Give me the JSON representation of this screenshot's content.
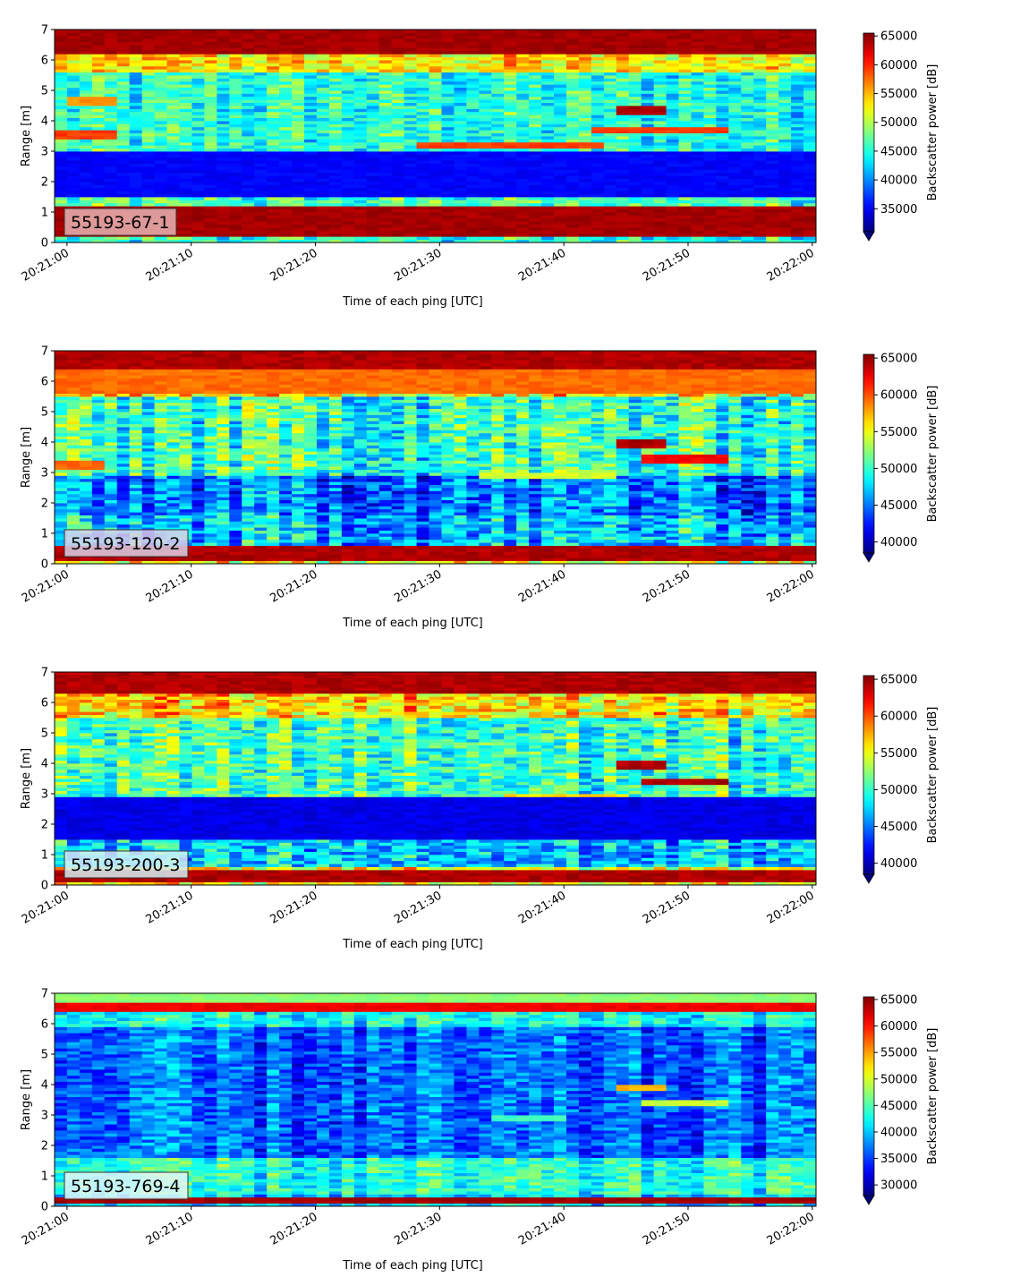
{
  "figure": {
    "colormap": "jet",
    "colormap_under_color": "#00007f"
  },
  "chart_data": [
    {
      "type": "heatmap",
      "panel_label": "55193-67-1",
      "label_box_color": "#e8b4b4",
      "xlabel": "Time of each ping [UTC]",
      "ylabel": "Range [m]",
      "x_ticks": [
        "20:21:00",
        "20:21:10",
        "20:21:20",
        "20:21:30",
        "20:21:40",
        "20:21:50",
        "20:22:00"
      ],
      "x_range_seconds": [
        -1,
        60.3
      ],
      "y_ticks": [
        0,
        1,
        2,
        3,
        4,
        5,
        6,
        7
      ],
      "ylim": [
        0,
        7
      ],
      "colorbar": {
        "label": "Backscatter power [dB]",
        "ticks": [
          35000,
          40000,
          45000,
          50000,
          55000,
          60000,
          65000
        ],
        "range": [
          31000,
          65500
        ],
        "extend": "min"
      },
      "features": [
        {
          "range": [
            0.2,
            1.2
          ],
          "value": 65000,
          "note": "strong near-field band"
        },
        {
          "range": [
            6.2,
            7.0
          ],
          "value": 65000,
          "note": "strong far band"
        },
        {
          "range": [
            1.5,
            3.0
          ],
          "value": 36000,
          "note": "low-backscatter band"
        },
        {
          "range": [
            3.1,
            3.3
          ],
          "time": [
            28,
            43
          ],
          "value": 60000
        },
        {
          "range": [
            3.6,
            3.8
          ],
          "time": [
            42,
            53
          ],
          "value": 60000
        },
        {
          "range": [
            4.2,
            4.5
          ],
          "time": [
            44,
            48
          ],
          "value": 65000
        },
        {
          "range": [
            3.4,
            3.65
          ],
          "time": [
            -1,
            4
          ],
          "value": 60000
        },
        {
          "range": [
            4.5,
            4.75
          ],
          "time": [
            0,
            4
          ],
          "value": 57000
        }
      ]
    },
    {
      "type": "heatmap",
      "panel_label": "55193-120-2",
      "label_box_color": "#dcd0e8",
      "xlabel": "Time of each ping [UTC]",
      "ylabel": "Range [m]",
      "x_ticks": [
        "20:21:00",
        "20:21:10",
        "20:21:20",
        "20:21:30",
        "20:21:40",
        "20:21:50",
        "20:22:00"
      ],
      "x_range_seconds": [
        -1,
        60.3
      ],
      "y_ticks": [
        0,
        1,
        2,
        3,
        4,
        5,
        6,
        7
      ],
      "ylim": [
        0,
        7
      ],
      "colorbar": {
        "label": "Backscatter power [dB]",
        "ticks": [
          40000,
          45000,
          50000,
          55000,
          60000,
          65000
        ],
        "range": [
          38500,
          65500
        ],
        "extend": "min"
      },
      "features": [
        {
          "range": [
            0.1,
            0.55
          ],
          "value": 65000
        },
        {
          "range": [
            6.4,
            7.0
          ],
          "value": 65000
        },
        {
          "range": [
            5.6,
            6.4
          ],
          "value": 60000
        },
        {
          "range": [
            3.8,
            4.05
          ],
          "time": [
            44,
            48
          ],
          "value": 65000
        },
        {
          "range": [
            3.35,
            3.55
          ],
          "time": [
            46,
            53
          ],
          "value": 63000
        },
        {
          "range": [
            2.85,
            3.0
          ],
          "time": [
            33,
            44
          ],
          "value": 55000
        },
        {
          "range": [
            3.15,
            3.35
          ],
          "time": [
            -1,
            3
          ],
          "value": 60000
        }
      ]
    },
    {
      "type": "heatmap",
      "panel_label": "55193-200-3",
      "label_box_color": "#d4f0f4",
      "xlabel": "Time of each ping [UTC]",
      "ylabel": "Range [m]",
      "x_ticks": [
        "20:21:00",
        "20:21:10",
        "20:21:20",
        "20:21:30",
        "20:21:40",
        "20:21:50",
        "20:22:00"
      ],
      "x_range_seconds": [
        -1,
        60.3
      ],
      "y_ticks": [
        0,
        1,
        2,
        3,
        4,
        5,
        6,
        7
      ],
      "ylim": [
        0,
        7
      ],
      "colorbar": {
        "label": "Backscatter power [dB]",
        "ticks": [
          40000,
          45000,
          50000,
          55000,
          60000,
          65000
        ],
        "range": [
          38500,
          65500
        ],
        "extend": "min"
      },
      "features": [
        {
          "range": [
            0.15,
            0.45
          ],
          "value": 65000
        },
        {
          "range": [
            6.3,
            7.0
          ],
          "value": 65000
        },
        {
          "range": [
            3.85,
            4.05
          ],
          "time": [
            44,
            48
          ],
          "value": 65000
        },
        {
          "range": [
            3.3,
            3.5
          ],
          "time": [
            46,
            53
          ],
          "value": 65000
        },
        {
          "range": [
            2.85,
            3.0
          ],
          "time": [
            35,
            45
          ],
          "value": 57000
        },
        {
          "range": [
            1.5,
            2.9
          ],
          "value": 42000
        }
      ]
    },
    {
      "type": "heatmap",
      "panel_label": "55193-769-4",
      "label_box_color": "#e0f4f8",
      "xlabel": "Time of each ping [UTC]",
      "ylabel": "Range [m]",
      "x_ticks": [
        "20:21:00",
        "20:21:10",
        "20:21:20",
        "20:21:30",
        "20:21:40",
        "20:21:50",
        "20:22:00"
      ],
      "x_range_seconds": [
        -1,
        60.3
      ],
      "y_ticks": [
        0,
        1,
        2,
        3,
        4,
        5,
        6,
        7
      ],
      "ylim": [
        0,
        7
      ],
      "colorbar": {
        "label": "Backscatter power [dB]",
        "ticks": [
          30000,
          35000,
          40000,
          45000,
          50000,
          55000,
          60000,
          65000
        ],
        "range": [
          28000,
          65500
        ],
        "extend": "min"
      },
      "features": [
        {
          "range": [
            0.15,
            0.35
          ],
          "value": 65000
        },
        {
          "range": [
            6.4,
            6.65
          ],
          "value": 62000
        },
        {
          "range": [
            6.7,
            7.0
          ],
          "value": 48000
        },
        {
          "range": [
            3.85,
            4.0
          ],
          "time": [
            44,
            48
          ],
          "value": 55000
        },
        {
          "range": [
            3.3,
            3.45
          ],
          "time": [
            46,
            53
          ],
          "value": 50000
        },
        {
          "range": [
            2.8,
            2.95
          ],
          "time": [
            34,
            40
          ],
          "value": 45000
        }
      ]
    }
  ]
}
